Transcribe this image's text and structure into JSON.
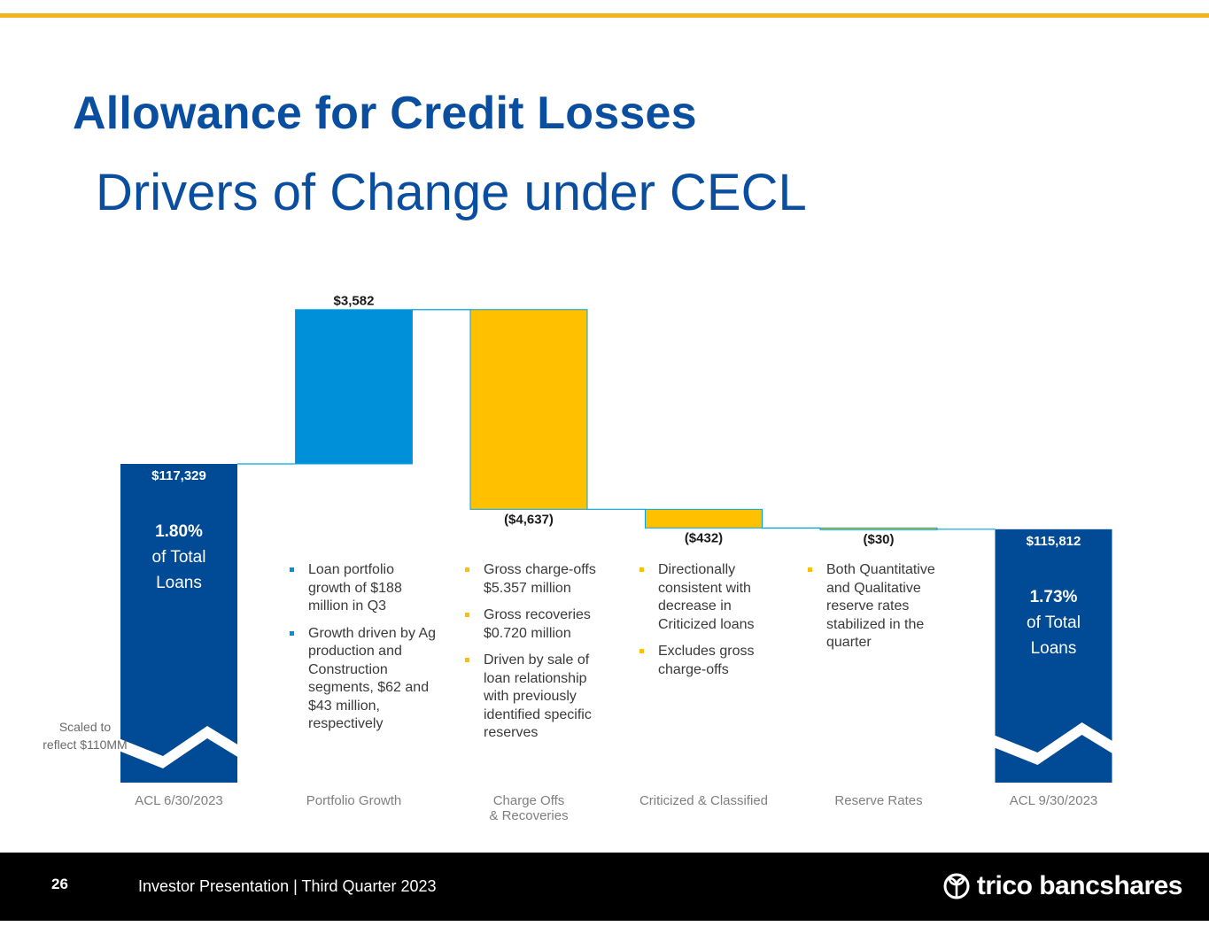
{
  "header": {
    "title": "Allowance for Credit Losses",
    "subtitle": "Drivers of Change under CECL"
  },
  "colors": {
    "accent_gold": "#F2B51D",
    "navy": "#0A4EA0",
    "bar_navy": "#004A96",
    "bar_blue": "#0090DA",
    "bar_gold": "#FFC000",
    "connector": "#00A3E0"
  },
  "chart_data": {
    "type": "bar",
    "subtype": "waterfall",
    "categories": [
      "ACL  6/30/2023",
      "Portfolio Growth",
      "Charge Offs\n& Recoveries",
      "Criticized & Classified",
      "Reserve Rates",
      "ACL  9/30/2023"
    ],
    "category_lines": [
      [
        "ACL  6/30/2023"
      ],
      [
        "Portfolio Growth"
      ],
      [
        "Charge Offs",
        "& Recoveries"
      ],
      [
        "Criticized & Classified"
      ],
      [
        "Reserve Rates"
      ],
      [
        "ACL  9/30/2023"
      ]
    ],
    "values": [
      117329,
      3582,
      -4637,
      -432,
      -30,
      115812
    ],
    "value_labels": [
      "$117,329",
      "$3,582",
      "($4,637)",
      "($432)",
      "($30)",
      "$115,812"
    ],
    "bar_kinds": [
      "total",
      "increase",
      "decrease",
      "decrease",
      "decrease",
      "total"
    ],
    "axis_break": true,
    "axis_break_note": "Scaled to reflect $110MM",
    "ylim": [
      110000,
      121500
    ],
    "legend": "none",
    "grid": false,
    "total_annotations": [
      {
        "pct": "1.80%",
        "line1": "of Total",
        "line2": "Loans"
      },
      null,
      null,
      null,
      null,
      {
        "pct": "1.73%",
        "line1": "of Total",
        "line2": "Loans"
      }
    ]
  },
  "notes": [
    {
      "column": 1,
      "bullet_color": "#0090DA",
      "items": [
        "Loan portfolio growth of $188 million in Q3",
        "Growth driven by Ag production and Construction segments, $62 and $43 million, respectively"
      ]
    },
    {
      "column": 2,
      "bullet_color": "#FFC000",
      "items": [
        "Gross charge-offs $5.357 million",
        "Gross recoveries $0.720 million",
        "Driven by sale of loan relationship with previously identified specific reserves"
      ]
    },
    {
      "column": 3,
      "bullet_color": "#FFC000",
      "items": [
        "Directionally consistent with decrease in Criticized loans",
        "Excludes gross charge-offs"
      ]
    },
    {
      "column": 4,
      "bullet_color": "#FFC000",
      "items": [
        "Both Quantitative and Qualitative reserve rates stabilized in the quarter"
      ]
    }
  ],
  "footer": {
    "page_number": "26",
    "text": "Investor Presentation | Third Quarter 2023",
    "brand": "trico bancshares",
    "brand_icon": "trico-leaf-icon"
  }
}
